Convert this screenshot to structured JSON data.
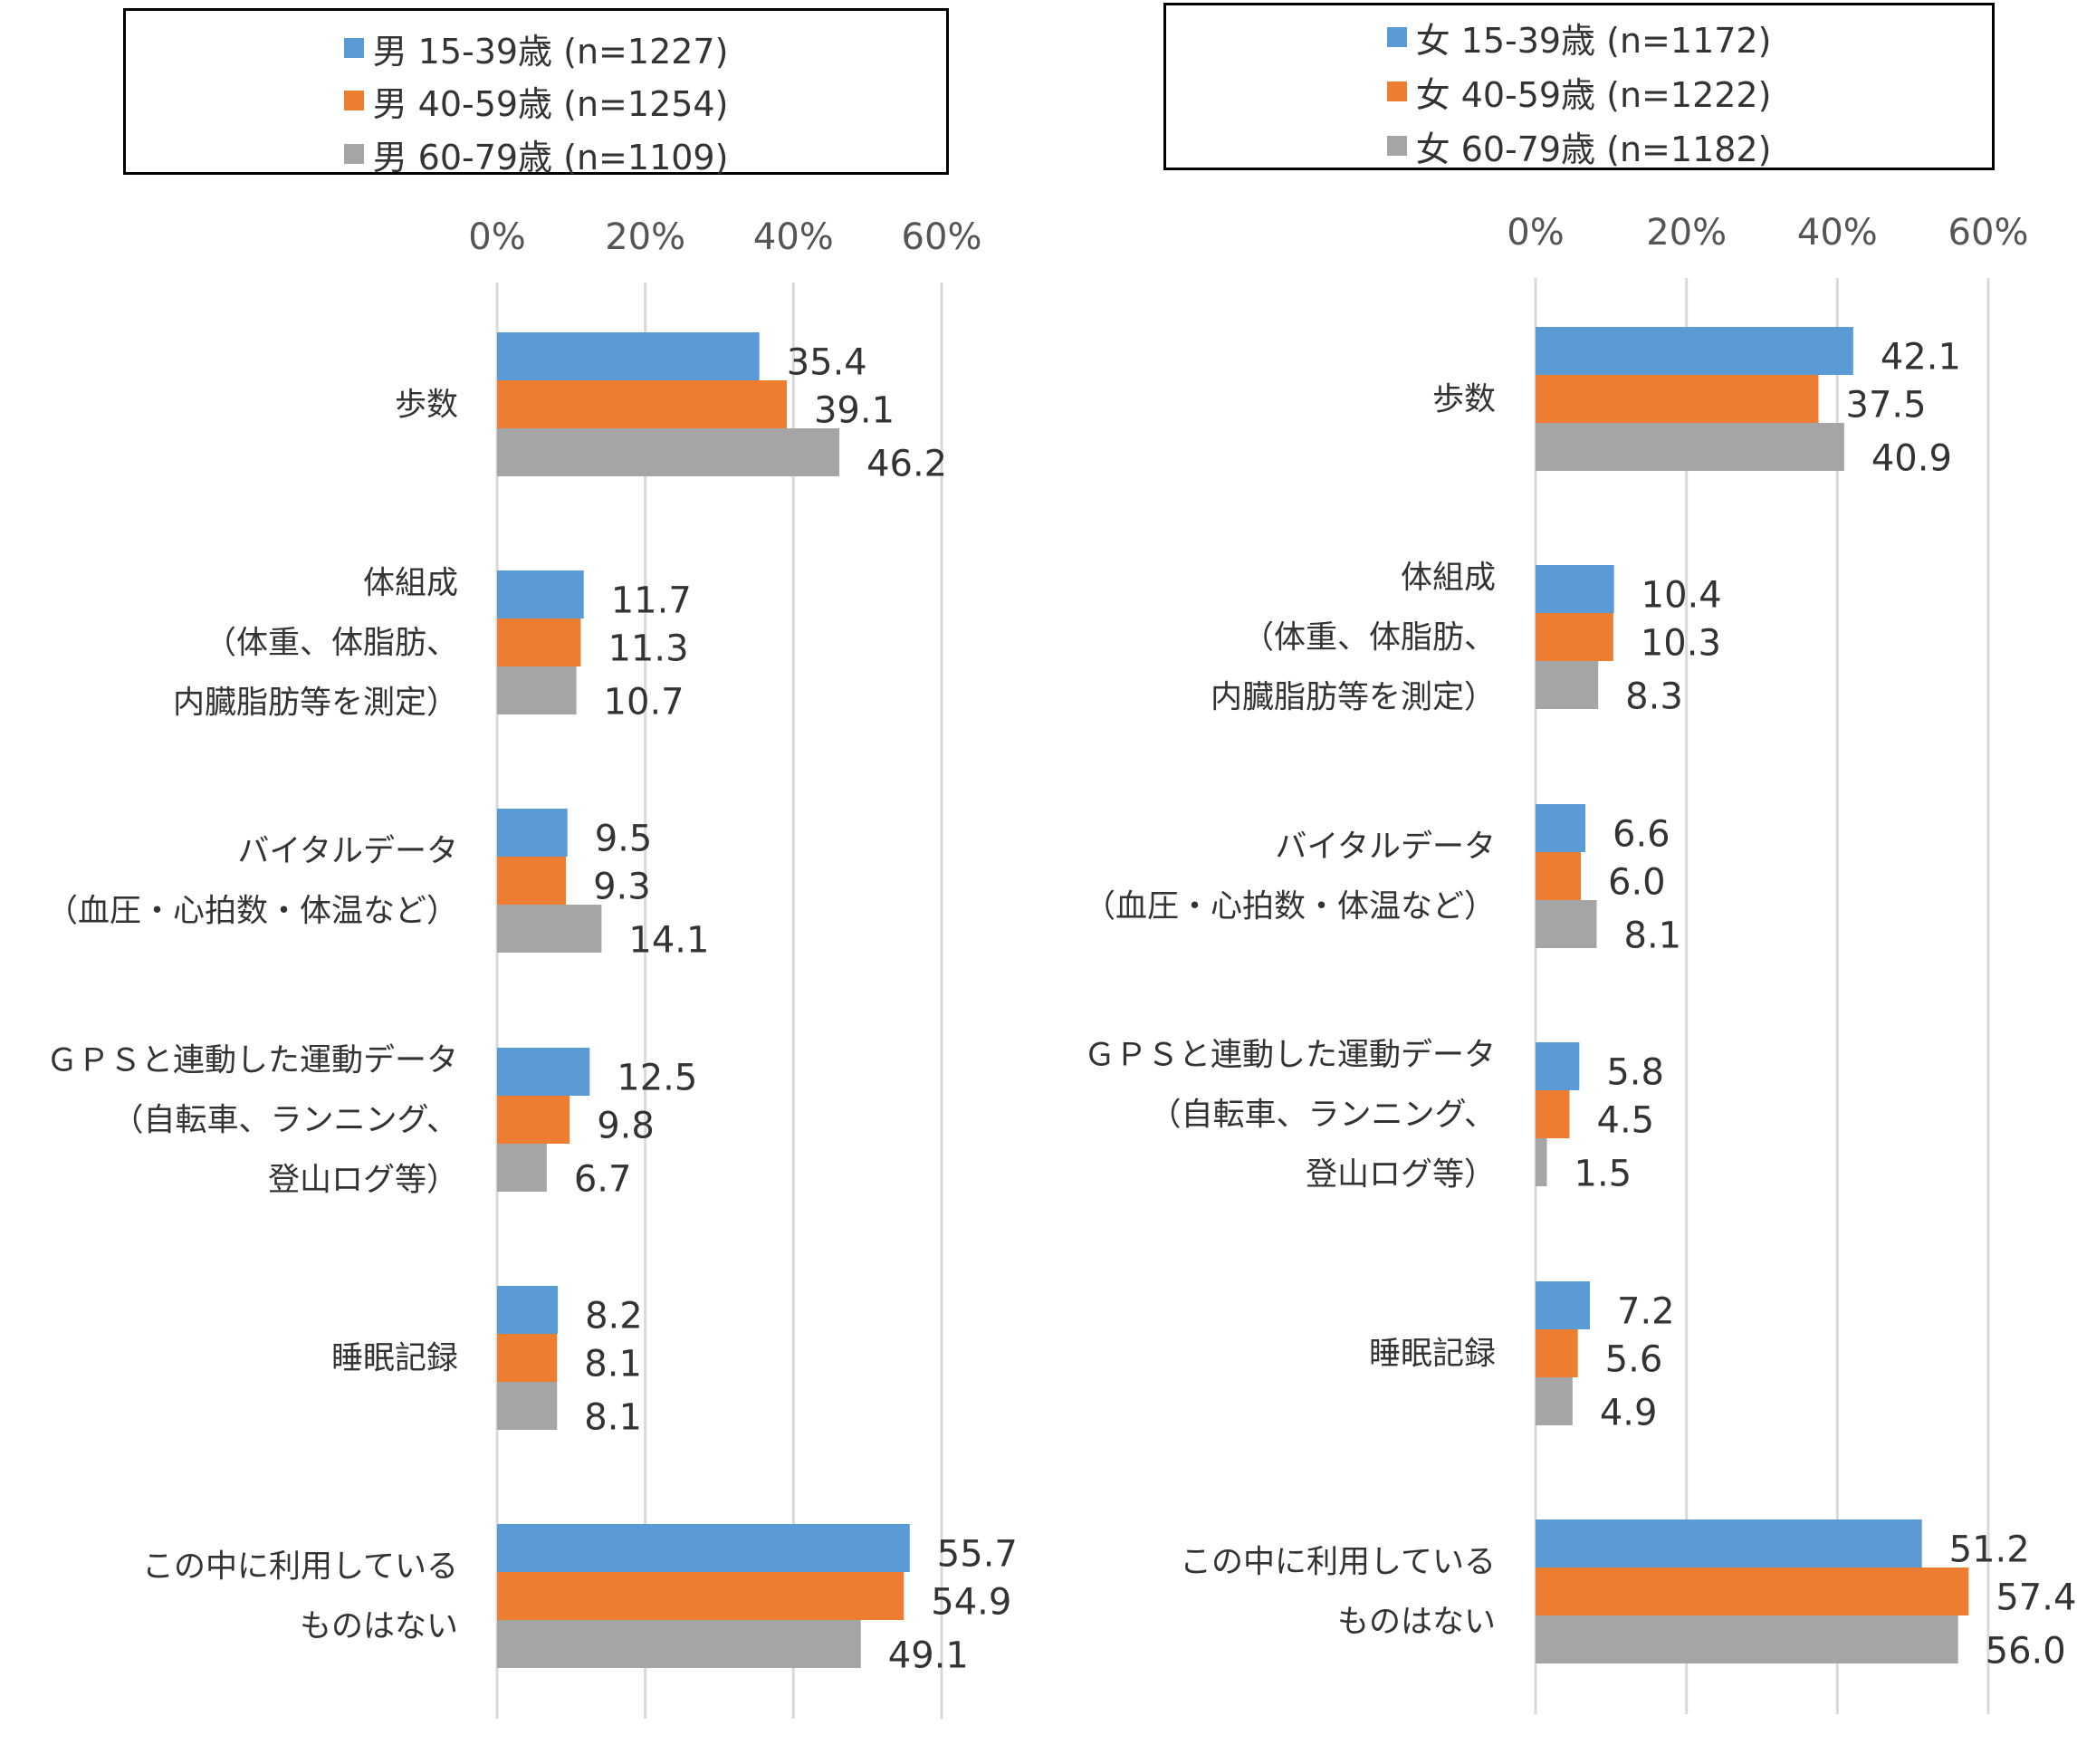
{
  "colors": {
    "series1": "#5B9BD5",
    "series2": "#ED7D31",
    "series3": "#A5A5A5",
    "grid": "#D9D9D9"
  },
  "chart_data": [
    {
      "type": "bar",
      "orientation": "horizontal",
      "legend_position": "top",
      "xlim": [
        0,
        60
      ],
      "x_ticks": [
        "0%",
        "20%",
        "40%",
        "60%"
      ],
      "categories": [
        [
          "歩数"
        ],
        [
          "体組成",
          "（体重、体脂肪、",
          "内臓脂肪等を測定）"
        ],
        [
          "バイタルデータ",
          "（血圧・心拍数・体温など）"
        ],
        [
          "ＧＰＳと連動した運動データ",
          "（自転車、ランニング、",
          "登山ログ等）"
        ],
        [
          "睡眠記録"
        ],
        [
          "この中に利用している",
          "ものはない"
        ]
      ],
      "series": [
        {
          "name": "男 15-39歳 (n=1227)",
          "values": [
            35.4,
            11.7,
            9.5,
            12.5,
            8.2,
            55.7
          ],
          "labels": [
            "35.4",
            "11.7",
            "9.5",
            "12.5",
            "8.2",
            "55.7"
          ]
        },
        {
          "name": "男 40-59歳 (n=1254)",
          "values": [
            39.1,
            11.3,
            9.3,
            9.8,
            8.1,
            54.9
          ],
          "labels": [
            "39.1",
            "11.3",
            "9.3",
            "9.8",
            "8.1",
            "54.9"
          ]
        },
        {
          "name": "男 60-79歳 (n=1109)",
          "values": [
            46.2,
            10.7,
            14.1,
            6.7,
            8.1,
            49.1
          ],
          "labels": [
            "46.2",
            "10.7",
            "14.1",
            "6.7",
            "8.1",
            "49.1"
          ]
        }
      ]
    },
    {
      "type": "bar",
      "orientation": "horizontal",
      "legend_position": "top",
      "xlim": [
        0,
        60
      ],
      "x_ticks": [
        "0%",
        "20%",
        "40%",
        "60%"
      ],
      "categories": [
        [
          "歩数"
        ],
        [
          "体組成",
          "（体重、体脂肪、",
          "内臓脂肪等を測定）"
        ],
        [
          "バイタルデータ",
          "（血圧・心拍数・体温など）"
        ],
        [
          "ＧＰＳと連動した運動データ",
          "（自転車、ランニング、",
          "登山ログ等）"
        ],
        [
          "睡眠記録"
        ],
        [
          "この中に利用している",
          "ものはない"
        ]
      ],
      "series": [
        {
          "name": "女 15-39歳 (n=1172)",
          "values": [
            42.1,
            10.4,
            6.6,
            5.8,
            7.2,
            51.2
          ],
          "labels": [
            "42.1",
            "10.4",
            "6.6",
            "5.8",
            "7.2",
            "51.2"
          ]
        },
        {
          "name": "女 40-59歳 (n=1222)",
          "values": [
            37.5,
            10.3,
            6.0,
            4.5,
            5.6,
            57.4
          ],
          "labels": [
            "37.5",
            "10.3",
            "6.0",
            "4.5",
            "5.6",
            "57.4"
          ]
        },
        {
          "name": "女 60-79歳 (n=1182)",
          "values": [
            40.9,
            8.3,
            8.1,
            1.5,
            4.9,
            56.0
          ],
          "labels": [
            "40.9",
            "8.3",
            "8.1",
            "1.5",
            "4.9",
            "56.0"
          ]
        }
      ]
    }
  ]
}
